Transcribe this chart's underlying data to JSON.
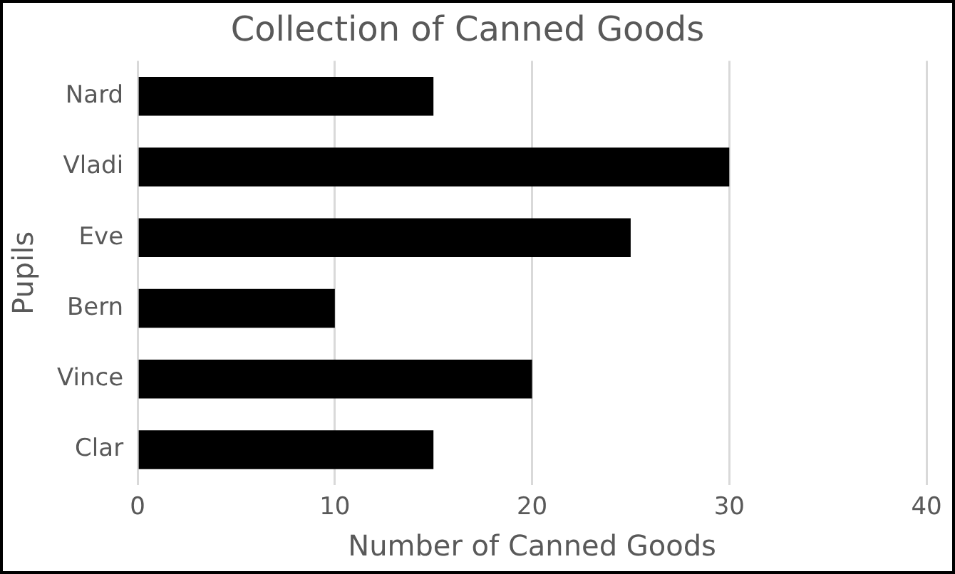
{
  "chart_data": {
    "type": "bar",
    "orientation": "horizontal",
    "title": "Collection of Canned Goods",
    "xlabel": "Number of Canned Goods",
    "ylabel": "Pupils",
    "categories": [
      "Nard",
      "Vladi",
      "Eve",
      "Bern",
      "Vince",
      "Clar"
    ],
    "values": [
      15,
      30,
      25,
      10,
      20,
      15
    ],
    "color": "#000000",
    "xlim": [
      0,
      40
    ],
    "xticks": [
      0,
      10,
      20,
      30,
      40
    ],
    "grid": "x",
    "legend": false
  }
}
